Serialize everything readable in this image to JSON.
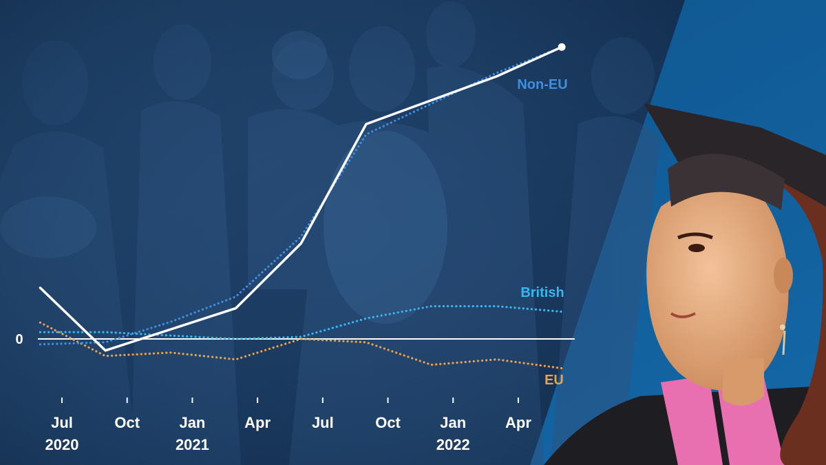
{
  "colors": {
    "overall": "#ffffff",
    "non_eu": "#3f8fe0",
    "british": "#35b8f0",
    "eu": "#e8a24a",
    "backdrop_left": "#1c3d63",
    "backdrop_right": "#0f5a92",
    "axis_text": "#ffffff"
  },
  "photos": {
    "left": "crowd of refugees including a woman holding a baby (monochrome blue tint)",
    "right": "smiling graduate in cap and gown looking upward"
  },
  "chart_data": {
    "type": "line",
    "x_unit": "month",
    "x_ticks": [
      {
        "x": "2020-07",
        "label": "Jul",
        "year": "2020"
      },
      {
        "x": "2020-10",
        "label": "Oct",
        "year": ""
      },
      {
        "x": "2021-01",
        "label": "Jan",
        "year": "2021"
      },
      {
        "x": "2021-04",
        "label": "Apr",
        "year": ""
      },
      {
        "x": "2021-07",
        "label": "Jul",
        "year": ""
      },
      {
        "x": "2021-10",
        "label": "Oct",
        "year": ""
      },
      {
        "x": "2022-01",
        "label": "Jan",
        "year": "2022"
      },
      {
        "x": "2022-04",
        "label": "Apr",
        "year": ""
      }
    ],
    "y_ticks": [
      {
        "value": 0,
        "label": "0"
      }
    ],
    "ylim": [
      -80,
      410
    ],
    "grid": false,
    "legend": "labels at line ends (right)",
    "series": [
      {
        "name": "",
        "style": "solid",
        "color": "#ffffff",
        "points": [
          {
            "x": "2020-06",
            "y": 75
          },
          {
            "x": "2020-09",
            "y": -17
          },
          {
            "x": "2021-03",
            "y": 45
          },
          {
            "x": "2021-06",
            "y": 140
          },
          {
            "x": "2021-09",
            "y": 315
          },
          {
            "x": "2021-12",
            "y": 350
          },
          {
            "x": "2022-03",
            "y": 385
          },
          {
            "x": "2022-06",
            "y": 428
          }
        ]
      },
      {
        "name": "Non-EU",
        "style": "dotted",
        "color": "#3f8fe0",
        "points": [
          {
            "x": "2020-06",
            "y": -8
          },
          {
            "x": "2020-09",
            "y": -5
          },
          {
            "x": "2020-12",
            "y": 25
          },
          {
            "x": "2021-03",
            "y": 62
          },
          {
            "x": "2021-06",
            "y": 150
          },
          {
            "x": "2021-09",
            "y": 300
          },
          {
            "x": "2021-12",
            "y": 345
          },
          {
            "x": "2022-03",
            "y": 390
          },
          {
            "x": "2022-06",
            "y": 428
          }
        ]
      },
      {
        "name": "British",
        "style": "dotted",
        "color": "#35b8f0",
        "points": [
          {
            "x": "2020-06",
            "y": 10
          },
          {
            "x": "2020-09",
            "y": 10
          },
          {
            "x": "2020-12",
            "y": 5
          },
          {
            "x": "2021-03",
            "y": 0
          },
          {
            "x": "2021-06",
            "y": 3
          },
          {
            "x": "2021-09",
            "y": 30
          },
          {
            "x": "2021-12",
            "y": 48
          },
          {
            "x": "2022-03",
            "y": 48
          },
          {
            "x": "2022-06",
            "y": 40
          }
        ]
      },
      {
        "name": "EU",
        "style": "dotted",
        "color": "#e8a24a",
        "points": [
          {
            "x": "2020-06",
            "y": 24
          },
          {
            "x": "2020-09",
            "y": -25
          },
          {
            "x": "2020-12",
            "y": -20
          },
          {
            "x": "2021-03",
            "y": -30
          },
          {
            "x": "2021-06",
            "y": 0
          },
          {
            "x": "2021-09",
            "y": -5
          },
          {
            "x": "2021-12",
            "y": -38
          },
          {
            "x": "2022-03",
            "y": -30
          },
          {
            "x": "2022-06",
            "y": -43
          }
        ]
      }
    ]
  }
}
